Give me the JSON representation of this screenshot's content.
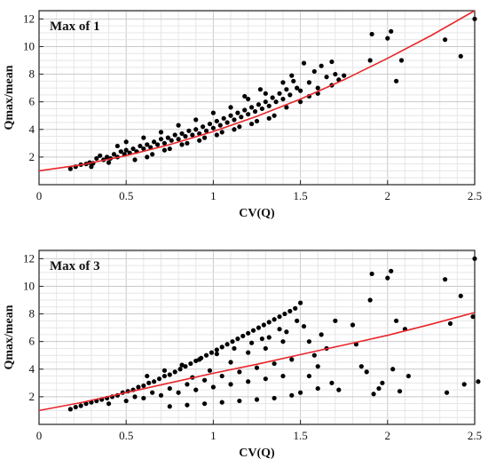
{
  "chart_data": [
    {
      "type": "scatter",
      "title": "Max of 1",
      "xlabel": "CV(Q)",
      "ylabel": "Qmax/mean",
      "xlim": [
        0,
        2.5
      ],
      "ylim": [
        0,
        12.6
      ],
      "xticks": [
        "0",
        "0.5",
        "1",
        "1.5",
        "2",
        "2.5"
      ],
      "yticks": [
        "2",
        "4",
        "6",
        "8",
        "10",
        "12"
      ],
      "grid": true,
      "series": [
        {
          "kind": "points",
          "color": "#000000",
          "points": [
            [
              0.18,
              1.15
            ],
            [
              0.21,
              1.3
            ],
            [
              0.24,
              1.45
            ],
            [
              0.27,
              1.5
            ],
            [
              0.29,
              1.6
            ],
            [
              0.31,
              1.55
            ],
            [
              0.33,
              1.9
            ],
            [
              0.35,
              2.1
            ],
            [
              0.37,
              1.8
            ],
            [
              0.39,
              2.0
            ],
            [
              0.41,
              1.9
            ],
            [
              0.43,
              2.2
            ],
            [
              0.45,
              2.0
            ],
            [
              0.47,
              2.4
            ],
            [
              0.49,
              2.2
            ],
            [
              0.5,
              2.5
            ],
            [
              0.52,
              2.3
            ],
            [
              0.54,
              2.6
            ],
            [
              0.56,
              2.4
            ],
            [
              0.58,
              2.8
            ],
            [
              0.6,
              2.6
            ],
            [
              0.62,
              2.9
            ],
            [
              0.64,
              2.7
            ],
            [
              0.66,
              3.1
            ],
            [
              0.68,
              2.9
            ],
            [
              0.7,
              3.3
            ],
            [
              0.72,
              3.0
            ],
            [
              0.74,
              3.4
            ],
            [
              0.76,
              3.2
            ],
            [
              0.78,
              3.6
            ],
            [
              0.8,
              3.3
            ],
            [
              0.82,
              3.7
            ],
            [
              0.84,
              3.5
            ],
            [
              0.86,
              3.9
            ],
            [
              0.88,
              3.6
            ],
            [
              0.9,
              4.0
            ],
            [
              0.92,
              3.7
            ],
            [
              0.94,
              4.2
            ],
            [
              0.96,
              3.9
            ],
            [
              0.98,
              4.4
            ],
            [
              1.0,
              4.1
            ],
            [
              1.02,
              4.6
            ],
            [
              1.04,
              4.3
            ],
            [
              1.06,
              4.8
            ],
            [
              1.08,
              4.5
            ],
            [
              1.1,
              5.0
            ],
            [
              1.12,
              4.7
            ],
            [
              1.14,
              5.2
            ],
            [
              1.16,
              4.9
            ],
            [
              1.18,
              5.4
            ],
            [
              1.2,
              5.1
            ],
            [
              1.22,
              5.6
            ],
            [
              1.24,
              5.3
            ],
            [
              1.26,
              5.8
            ],
            [
              1.28,
              5.5
            ],
            [
              1.3,
              6.0
            ],
            [
              1.32,
              5.7
            ],
            [
              1.34,
              6.3
            ],
            [
              1.36,
              6.0
            ],
            [
              1.38,
              6.6
            ],
            [
              1.4,
              6.2
            ],
            [
              1.42,
              6.9
            ],
            [
              1.44,
              6.5
            ],
            [
              1.46,
              7.5
            ],
            [
              1.48,
              7.0
            ],
            [
              1.5,
              6.8
            ],
            [
              1.52,
              8.8
            ],
            [
              1.55,
              7.4
            ],
            [
              1.58,
              8.2
            ],
            [
              1.6,
              7.0
            ],
            [
              1.62,
              8.6
            ],
            [
              1.65,
              7.8
            ],
            [
              1.68,
              8.9
            ],
            [
              1.7,
              8.0
            ],
            [
              1.72,
              7.6
            ],
            [
              0.55,
              1.8
            ],
            [
              0.65,
              2.2
            ],
            [
              0.75,
              2.6
            ],
            [
              0.85,
              3.0
            ],
            [
              0.95,
              3.4
            ],
            [
              1.05,
              3.8
            ],
            [
              1.15,
              4.2
            ],
            [
              1.25,
              4.6
            ],
            [
              1.35,
              5.0
            ],
            [
              0.6,
              3.4
            ],
            [
              0.7,
              3.8
            ],
            [
              0.8,
              4.3
            ],
            [
              0.9,
              4.7
            ],
            [
              1.0,
              5.2
            ],
            [
              1.1,
              5.6
            ],
            [
              1.2,
              6.2
            ],
            [
              1.3,
              6.6
            ],
            [
              1.4,
              7.4
            ],
            [
              1.45,
              7.9
            ],
            [
              1.27,
              6.9
            ],
            [
              1.18,
              6.4
            ],
            [
              0.45,
              2.8
            ],
            [
              0.5,
              3.1
            ],
            [
              0.4,
              1.6
            ],
            [
              0.3,
              1.3
            ],
            [
              0.62,
              2.0
            ],
            [
              0.72,
              2.5
            ],
            [
              0.82,
              2.9
            ],
            [
              0.92,
              3.2
            ],
            [
              1.02,
              3.6
            ],
            [
              1.12,
              4.0
            ],
            [
              1.22,
              4.4
            ],
            [
              1.32,
              4.8
            ],
            [
              1.42,
              5.6
            ],
            [
              1.5,
              6.0
            ],
            [
              1.55,
              6.4
            ],
            [
              1.6,
              6.6
            ],
            [
              1.68,
              7.2
            ],
            [
              1.75,
              7.9
            ],
            [
              1.9,
              9.0
            ],
            [
              1.91,
              10.9
            ],
            [
              2.0,
              10.6
            ],
            [
              2.02,
              11.1
            ],
            [
              2.05,
              7.5
            ],
            [
              2.08,
              9.0
            ],
            [
              2.33,
              10.5
            ],
            [
              2.42,
              9.3
            ],
            [
              2.5,
              12.0
            ]
          ]
        },
        {
          "kind": "curve",
          "color": "#e8262b",
          "x": [
            0,
            0.25,
            0.5,
            0.75,
            1.0,
            1.25,
            1.5,
            1.75,
            2.0,
            2.25,
            2.5
          ],
          "y": [
            1.0,
            1.45,
            2.1,
            2.9,
            3.85,
            4.95,
            6.2,
            7.6,
            9.15,
            10.8,
            12.6
          ]
        }
      ]
    },
    {
      "type": "scatter",
      "title": "Max of 3",
      "xlabel": "CV(Q)",
      "ylabel": "Qmax/mean",
      "xlim": [
        0,
        2.5
      ],
      "ylim": [
        0,
        12.6
      ],
      "xticks": [
        "0",
        "0.5",
        "1",
        "1.5",
        "2",
        "2.5"
      ],
      "yticks": [
        "2",
        "4",
        "6",
        "8",
        "10",
        "12"
      ],
      "grid": true,
      "series": [
        {
          "kind": "points",
          "color": "#000000",
          "points": [
            [
              0.18,
              1.1
            ],
            [
              0.21,
              1.25
            ],
            [
              0.24,
              1.35
            ],
            [
              0.27,
              1.5
            ],
            [
              0.3,
              1.6
            ],
            [
              0.33,
              1.7
            ],
            [
              0.36,
              1.8
            ],
            [
              0.39,
              1.9
            ],
            [
              0.42,
              2.0
            ],
            [
              0.45,
              2.1
            ],
            [
              0.48,
              2.3
            ],
            [
              0.51,
              2.4
            ],
            [
              0.54,
              2.5
            ],
            [
              0.57,
              2.7
            ],
            [
              0.6,
              2.8
            ],
            [
              0.63,
              3.0
            ],
            [
              0.66,
              3.1
            ],
            [
              0.69,
              3.3
            ],
            [
              0.72,
              3.5
            ],
            [
              0.75,
              3.6
            ],
            [
              0.78,
              3.8
            ],
            [
              0.81,
              4.0
            ],
            [
              0.84,
              4.2
            ],
            [
              0.87,
              4.4
            ],
            [
              0.9,
              4.6
            ],
            [
              0.93,
              4.8
            ],
            [
              0.96,
              5.0
            ],
            [
              0.99,
              5.2
            ],
            [
              1.02,
              5.4
            ],
            [
              1.05,
              5.6
            ],
            [
              1.08,
              5.8
            ],
            [
              1.11,
              6.0
            ],
            [
              1.14,
              6.2
            ],
            [
              1.17,
              6.4
            ],
            [
              1.2,
              6.6
            ],
            [
              1.23,
              6.8
            ],
            [
              1.26,
              7.0
            ],
            [
              1.29,
              7.2
            ],
            [
              1.32,
              7.4
            ],
            [
              1.35,
              7.6
            ],
            [
              1.38,
              7.8
            ],
            [
              1.41,
              8.0
            ],
            [
              1.44,
              8.2
            ],
            [
              1.47,
              8.4
            ],
            [
              1.5,
              8.8
            ],
            [
              0.4,
              1.5
            ],
            [
              0.5,
              1.7
            ],
            [
              0.6,
              1.9
            ],
            [
              0.7,
              2.1
            ],
            [
              0.8,
              2.3
            ],
            [
              0.9,
              2.5
            ],
            [
              1.0,
              2.7
            ],
            [
              1.1,
              2.9
            ],
            [
              1.2,
              3.1
            ],
            [
              1.3,
              3.3
            ],
            [
              1.4,
              3.5
            ],
            [
              0.55,
              2.0
            ],
            [
              0.65,
              2.3
            ],
            [
              0.75,
              2.6
            ],
            [
              0.85,
              2.9
            ],
            [
              0.95,
              3.2
            ],
            [
              1.05,
              3.5
            ],
            [
              1.15,
              3.8
            ],
            [
              1.25,
              4.1
            ],
            [
              1.35,
              4.4
            ],
            [
              1.45,
              4.7
            ],
            [
              0.62,
              3.5
            ],
            [
              0.72,
              3.9
            ],
            [
              0.82,
              4.3
            ],
            [
              0.92,
              4.7
            ],
            [
              1.02,
              5.1
            ],
            [
              1.12,
              5.5
            ],
            [
              1.22,
              5.9
            ],
            [
              1.32,
              6.3
            ],
            [
              1.42,
              6.7
            ],
            [
              1.52,
              7.1
            ],
            [
              1.55,
              6.0
            ],
            [
              1.58,
              5.0
            ],
            [
              1.6,
              4.2
            ],
            [
              1.62,
              6.5
            ],
            [
              1.65,
              5.5
            ],
            [
              1.68,
              3.0
            ],
            [
              1.7,
              7.5
            ],
            [
              1.72,
              2.5
            ],
            [
              1.55,
              3.5
            ],
            [
              1.6,
              2.6
            ],
            [
              1.5,
              2.3
            ],
            [
              1.45,
              2.1
            ],
            [
              1.35,
              1.9
            ],
            [
              1.25,
              1.8
            ],
            [
              1.15,
              1.7
            ],
            [
              1.05,
              1.6
            ],
            [
              0.95,
              1.5
            ],
            [
              0.85,
              1.4
            ],
            [
              0.75,
              1.3
            ],
            [
              1.1,
              4.5
            ],
            [
              1.2,
              5.2
            ],
            [
              1.3,
              5.5
            ],
            [
              1.4,
              6.0
            ],
            [
              1.48,
              7.5
            ],
            [
              1.38,
              6.9
            ],
            [
              1.28,
              6.2
            ],
            [
              0.98,
              3.9
            ],
            [
              0.88,
              3.4
            ],
            [
              1.8,
              7.2
            ],
            [
              1.82,
              5.8
            ],
            [
              1.85,
              4.2
            ],
            [
              1.88,
              3.8
            ],
            [
              1.9,
              9.0
            ],
            [
              1.91,
              10.9
            ],
            [
              1.92,
              2.2
            ],
            [
              1.95,
              2.6
            ],
            [
              1.97,
              3.0
            ],
            [
              2.0,
              10.6
            ],
            [
              2.02,
              11.1
            ],
            [
              2.03,
              4.0
            ],
            [
              2.05,
              7.5
            ],
            [
              2.07,
              2.4
            ],
            [
              2.1,
              6.9
            ],
            [
              2.12,
              3.5
            ],
            [
              2.33,
              10.5
            ],
            [
              2.34,
              2.3
            ],
            [
              2.36,
              7.3
            ],
            [
              2.42,
              9.3
            ],
            [
              2.44,
              2.9
            ],
            [
              2.5,
              12.0
            ],
            [
              2.52,
              3.1
            ],
            [
              2.49,
              7.8
            ]
          ]
        },
        {
          "kind": "curve",
          "color": "#e8262b",
          "x": [
            0,
            0.25,
            0.5,
            0.75,
            1.0,
            1.25,
            1.5,
            1.75,
            2.0,
            2.25,
            2.5
          ],
          "y": [
            1.0,
            1.6,
            2.3,
            3.0,
            3.7,
            4.35,
            5.05,
            5.75,
            6.45,
            7.25,
            8.1
          ]
        }
      ]
    }
  ]
}
